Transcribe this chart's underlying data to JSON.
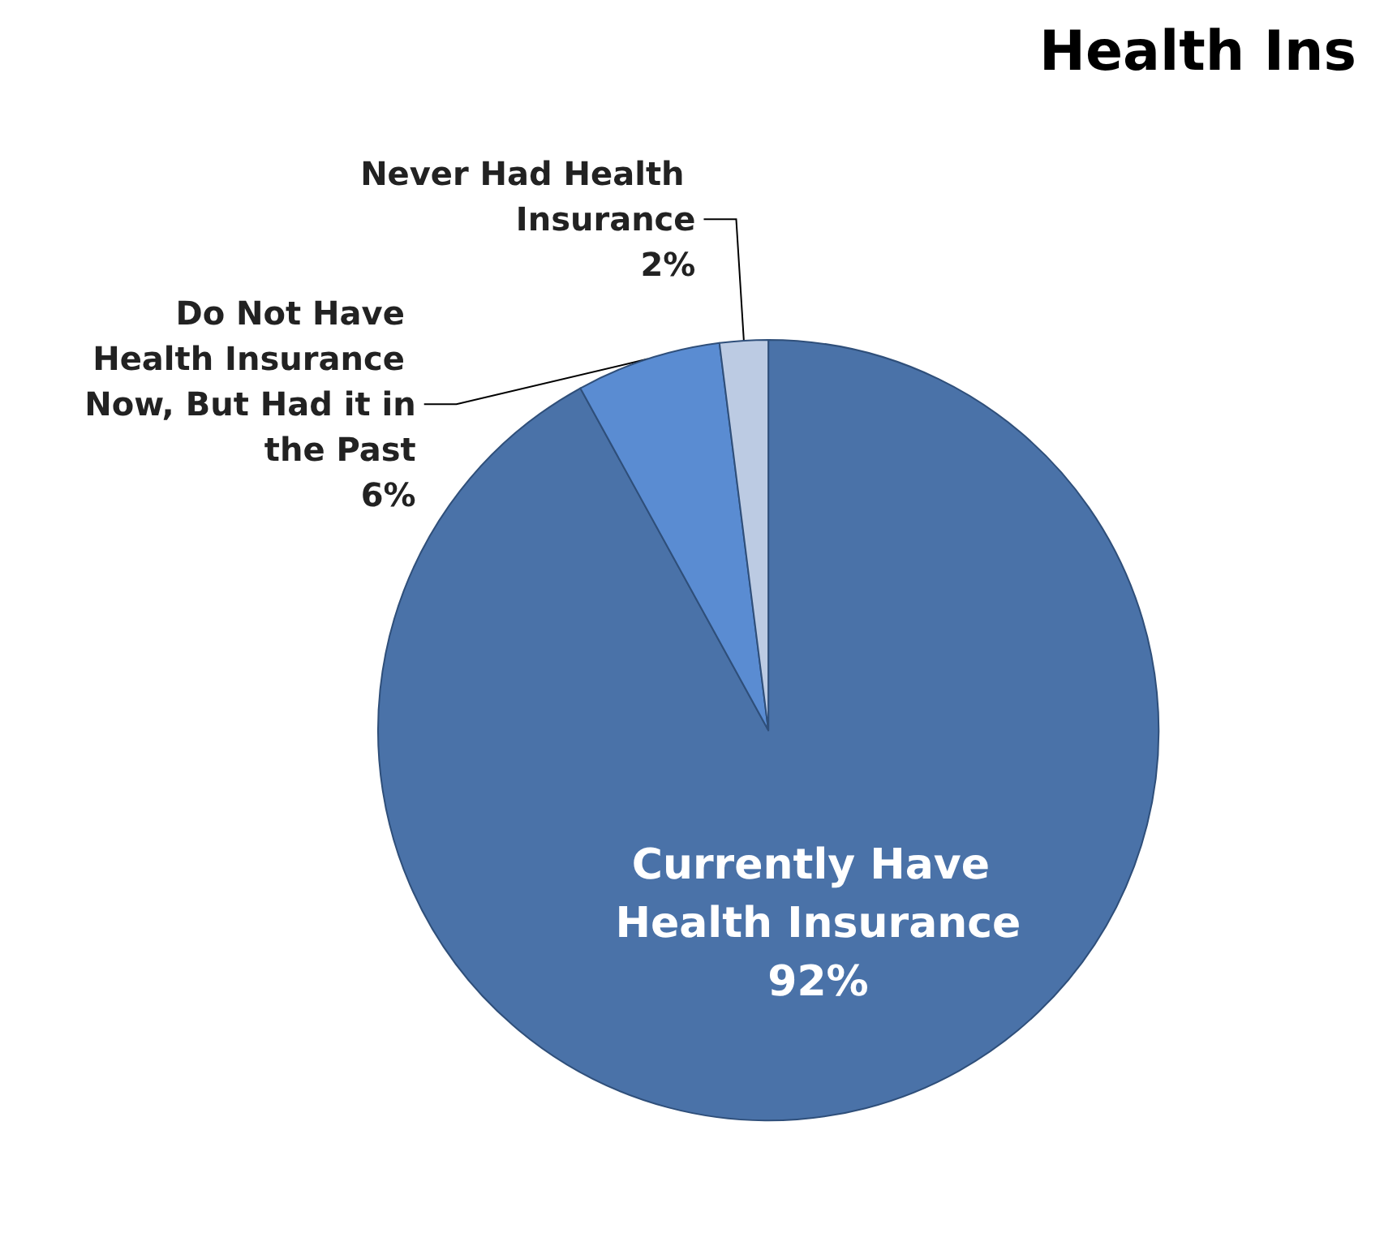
{
  "chart_data": {
    "type": "pie",
    "title": "Health Ins",
    "categories": [
      "Currently Have Health Insurance",
      "Do Not Have Health Insurance Now, But Had it in the Past",
      "Never Had Health Insurance"
    ],
    "values": [
      92,
      6,
      2
    ],
    "value_labels": [
      "92%",
      "6%",
      "2%"
    ],
    "colors": [
      "#4a72a8",
      "#5a8cd2",
      "#bccbe3"
    ],
    "legend": false
  }
}
